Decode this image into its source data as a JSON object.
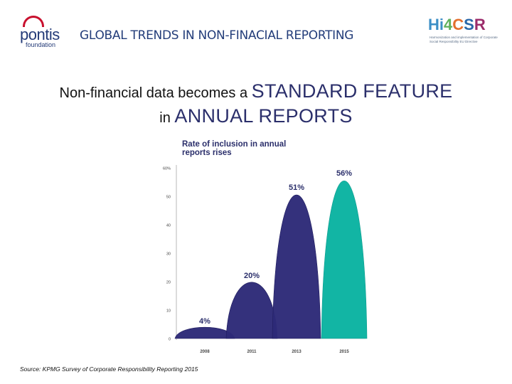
{
  "header": {
    "title": "GLOBAL TRENDS IN NON-FINACIAL REPORTING",
    "left_logo": {
      "name": "pontis",
      "subtitle": "foundation"
    },
    "right_logo": {
      "parts": [
        "Hi",
        "4",
        "C",
        "S",
        "R"
      ],
      "tagline": "Harmonization and implementation of Corporate Social Responsibility EU Directive"
    }
  },
  "headline": {
    "line1_prefix": "Non-financial data becomes a ",
    "line1_emphasis": "STANDARD FEATURE",
    "line2_prefix": "in ",
    "line2_emphasis": "ANNUAL REPORTS"
  },
  "colors": {
    "title_blue": "#233d7a",
    "series_navy": "#2d2a78",
    "series_teal": "#12b5a4",
    "logo_red": "#c8102e"
  },
  "chart_data": {
    "type": "area",
    "title": "Rate of inclusion in annual reports rises",
    "categories": [
      "2008",
      "2011",
      "2013",
      "2015"
    ],
    "values": [
      4,
      20,
      51,
      56
    ],
    "data_labels": [
      "4%",
      "20%",
      "51%",
      "56%"
    ],
    "ylim": [
      0,
      60
    ],
    "yticks": [
      "0",
      "10",
      "20",
      "30",
      "40",
      "50",
      "60%"
    ],
    "series_colors": [
      "#2d2a78",
      "#2d2a78",
      "#2d2a78",
      "#12b5a4"
    ],
    "grid": false
  },
  "source": "Source: KPMG Survey of Corporate Responsibility Reporting 2015"
}
